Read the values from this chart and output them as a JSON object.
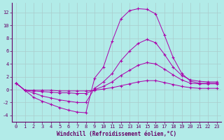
{
  "xlabel": "Windchill (Refroidissement éolien,°C)",
  "background_color": "#b2ebe8",
  "line_color": "#aa00aa",
  "grid_color": "#aacccc",
  "x_ticks": [
    0,
    1,
    2,
    3,
    4,
    5,
    6,
    7,
    8,
    9,
    10,
    11,
    12,
    13,
    14,
    15,
    16,
    17,
    18,
    19,
    20,
    21,
    22,
    23
  ],
  "y_ticks": [
    -4,
    -2,
    0,
    2,
    4,
    6,
    8,
    10,
    12
  ],
  "xlim": [
    -0.5,
    23.5
  ],
  "ylim": [
    -5.0,
    13.5
  ],
  "series": {
    "line1": [
      1.0,
      -0.1,
      -1.2,
      -1.8,
      -2.3,
      -2.8,
      -3.2,
      -3.5,
      -3.6,
      1.8,
      3.5,
      7.5,
      11.0,
      12.3,
      12.6,
      12.5,
      11.8,
      8.5,
      5.0,
      2.5,
      1.3,
      1.0,
      1.0,
      1.0
    ],
    "line2": [
      1.0,
      -0.1,
      -0.5,
      -1.0,
      -1.3,
      -1.6,
      -1.8,
      -2.0,
      -2.0,
      0.2,
      1.2,
      2.5,
      4.5,
      6.0,
      7.2,
      7.8,
      7.3,
      5.5,
      3.5,
      2.2,
      1.5,
      1.3,
      1.2,
      1.2
    ],
    "line3": [
      1.0,
      -0.1,
      -0.2,
      -0.3,
      -0.4,
      -0.5,
      -0.5,
      -0.6,
      -0.6,
      0.0,
      0.5,
      1.2,
      2.2,
      3.0,
      3.8,
      4.2,
      4.0,
      3.2,
      2.3,
      1.5,
      1.0,
      0.9,
      0.9,
      0.9
    ],
    "line4": [
      1.0,
      -0.1,
      -0.1,
      -0.1,
      -0.1,
      -0.2,
      -0.2,
      -0.2,
      -0.2,
      -0.1,
      0.1,
      0.3,
      0.6,
      0.9,
      1.2,
      1.4,
      1.4,
      1.1,
      0.8,
      0.5,
      0.3,
      0.2,
      0.2,
      0.2
    ]
  }
}
